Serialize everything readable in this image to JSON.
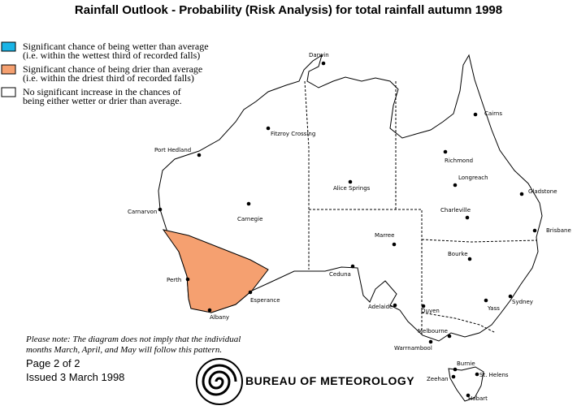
{
  "header": {
    "title": "Rainfall Outlook - Probability (Risk Analysis) for total rainfall autumn 1998"
  },
  "legend": [
    {
      "color": "#1ab4e6",
      "lines": [
        "Significant chance of being wetter than average",
        "(i.e. within the wettest third of recorded falls)"
      ]
    },
    {
      "color": "#f5a070",
      "lines": [
        "Significant chance of being drier than average",
        "(i.e. within the driest third of recorded falls)"
      ]
    },
    {
      "color": "#ffffff",
      "lines": [
        "No significant increase in the chances of",
        "being either wetter or drier than average."
      ]
    }
  ],
  "note": [
    "Please note: The diagram does not imply that the individual",
    "months March, April, and May will follow this pattern."
  ],
  "page": "Page 2 of 2",
  "issued": "Issued 3 March 1998",
  "logo": "BUREAU OF METEOROLOGY",
  "cities": [
    "Darwin",
    "Fitzroy Crossing",
    "Port Hedland",
    "Carnarvon",
    "Carnegie",
    "Alice Springs",
    "Cairns",
    "Richmond",
    "Longreach",
    "Gladstone",
    "Charleville",
    "Brisbane",
    "Marree",
    "Bourke",
    "Ceduna",
    "Perth",
    "Esperance",
    "Albany",
    "Adelaide",
    "Ouyen",
    "Yass",
    "Sydney",
    "Melbourne",
    "Warrnambool",
    "Burnie",
    "St. Helens",
    "Zeehan",
    "Hobart"
  ]
}
